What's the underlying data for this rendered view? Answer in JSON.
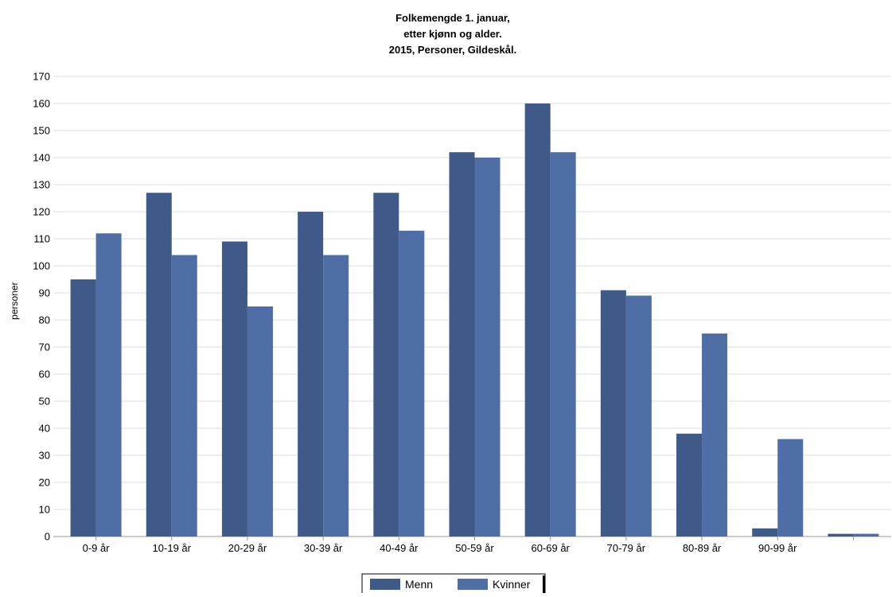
{
  "chart_data": {
    "type": "bar",
    "title_lines": [
      "Folkemengde 1. januar,",
      "etter kjønn og alder.",
      "2015, Personer, Gildeskål."
    ],
    "ylabel": "personer",
    "xlabel": "",
    "ylim": [
      0,
      170
    ],
    "yticks": [
      0,
      10,
      20,
      30,
      40,
      50,
      60,
      70,
      80,
      90,
      100,
      110,
      120,
      130,
      140,
      150,
      160,
      170
    ],
    "grid": true,
    "legend_position": "bottom-center",
    "categories": [
      "0-9 år",
      "10-19 år",
      "20-29 år",
      "30-39 år",
      "40-49 år",
      "50-59 år",
      "60-69 år",
      "70-79 år",
      "80-89 år",
      "90-99 år",
      ""
    ],
    "series": [
      {
        "name": "Menn",
        "color": "#3f5a88",
        "values": [
          95,
          127,
          109,
          120,
          127,
          142,
          160,
          91,
          38,
          3,
          1
        ]
      },
      {
        "name": "Kvinner",
        "color": "#4f6ea6",
        "values": [
          112,
          104,
          85,
          104,
          113,
          140,
          142,
          89,
          75,
          36,
          1
        ]
      }
    ]
  }
}
